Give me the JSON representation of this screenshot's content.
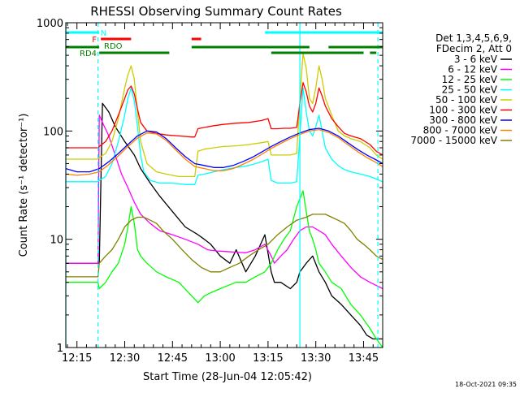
{
  "chart_data": {
    "type": "line",
    "title": "RHESSI Observing Summary Count Rates",
    "xlabel": "Start Time (28-Jun-04 12:05:42)",
    "ylabel": "Count Rate (s⁻¹ detector⁻¹)",
    "y_scale": "log",
    "ylim": [
      1,
      1000
    ],
    "xlim": [
      6.5,
      106
    ],
    "x_unit": "minutes after 12:05:42",
    "y_ticks": [
      {
        "value": 1,
        "label": "1"
      },
      {
        "value": 10,
        "label": "10"
      },
      {
        "value": 100,
        "label": "100"
      },
      {
        "value": 1000,
        "label": "1000"
      }
    ],
    "x_ticks": [
      {
        "value": 10,
        "label": "12:15"
      },
      {
        "value": 25,
        "label": "12:30"
      },
      {
        "value": 40,
        "label": "12:45"
      },
      {
        "value": 55,
        "label": "13:00"
      },
      {
        "value": 70,
        "label": "13:15"
      },
      {
        "value": 85,
        "label": "13:30"
      },
      {
        "value": 100,
        "label": "13:45"
      }
    ],
    "legend": {
      "placement": "right",
      "header": [
        "Det 1,3,4,5,6,9,",
        "FDecim 2, Att 0"
      ]
    },
    "series": [
      {
        "name": "3 - 6 keV",
        "color": "#000000",
        "x": [
          6.5,
          16.6,
          17,
          18,
          20,
          22,
          25,
          28,
          30,
          33,
          36,
          40,
          44,
          48,
          50,
          52,
          55,
          58,
          60,
          63,
          66,
          69,
          71,
          72,
          74,
          77,
          79,
          80,
          82,
          84,
          86,
          88,
          90,
          93,
          96,
          99,
          101,
          103,
          106
        ],
        "y": [
          6,
          6,
          6,
          180,
          150,
          110,
          80,
          60,
          45,
          33,
          25,
          18,
          13,
          11,
          10,
          9,
          7,
          6,
          8,
          5,
          7,
          11,
          5,
          4,
          4,
          3.5,
          4,
          5,
          6,
          7,
          5,
          4,
          3,
          2.5,
          2,
          1.6,
          1.3,
          1.2,
          1.2
        ]
      },
      {
        "name": "6 - 12 keV",
        "color": "#ff00ff",
        "x": [
          6.5,
          15,
          16.6,
          17,
          18,
          20,
          22,
          24,
          26,
          28,
          30,
          33,
          36,
          40,
          44,
          48,
          51,
          54,
          57,
          60,
          63,
          66,
          69,
          71,
          72,
          74,
          76,
          78,
          80,
          82,
          84,
          86,
          88,
          90,
          93,
          96,
          99,
          102,
          106
        ],
        "y": [
          6,
          6,
          6,
          140,
          120,
          90,
          60,
          40,
          30,
          22,
          17,
          14,
          12,
          11,
          10,
          9,
          8,
          7.8,
          7.7,
          7.6,
          7.5,
          8,
          9,
          7,
          6,
          7,
          8,
          10,
          12,
          13,
          13,
          12,
          11,
          9,
          7,
          5.5,
          4.5,
          4,
          3.5
        ]
      },
      {
        "name": "12 - 25 keV",
        "color": "#00ff00",
        "x": [
          6.5,
          16.6,
          17,
          19,
          21,
          23,
          25,
          26,
          27,
          28,
          29,
          30,
          32,
          35,
          38,
          42,
          46,
          48,
          50,
          52,
          55,
          58,
          60,
          63,
          66,
          69,
          71,
          73,
          75,
          77,
          79,
          81,
          82,
          83,
          84,
          85,
          86,
          88,
          90,
          93,
          96,
          99,
          102,
          104,
          106
        ],
        "y": [
          4,
          4,
          3.5,
          4,
          5,
          6,
          9,
          13,
          20,
          14,
          8,
          7,
          6,
          5,
          4.5,
          4,
          3,
          2.6,
          3,
          3.2,
          3.5,
          3.8,
          4,
          4,
          4.5,
          5,
          6,
          8,
          10,
          12,
          20,
          28,
          18,
          12,
          10,
          8,
          6,
          5,
          4,
          3.5,
          2.5,
          2,
          1.5,
          1.2,
          1
        ]
      },
      {
        "name": "25 - 50 keV",
        "color": "#00ffff",
        "x": [
          6.5,
          16.6,
          17,
          19,
          21,
          23,
          25,
          26,
          27,
          28,
          29,
          30,
          31,
          33,
          36,
          40,
          44,
          47,
          48,
          50,
          53,
          56,
          60,
          64,
          68,
          70,
          71,
          73,
          75,
          77,
          79,
          80,
          81,
          82,
          83,
          84,
          85,
          86,
          87,
          88,
          90,
          92,
          94,
          96,
          99,
          102,
          104,
          106
        ],
        "y": [
          34,
          34,
          35,
          38,
          50,
          80,
          140,
          200,
          250,
          190,
          110,
          60,
          42,
          35,
          33,
          33,
          32,
          32,
          39,
          40,
          42,
          44,
          46,
          48,
          52,
          55,
          35,
          33,
          33,
          33,
          34,
          90,
          250,
          150,
          100,
          90,
          110,
          140,
          100,
          70,
          55,
          48,
          44,
          42,
          40,
          38,
          36,
          34
        ]
      },
      {
        "name": "50 - 100 keV",
        "color": "#cccc00",
        "x": [
          6.5,
          16.6,
          17,
          19,
          21,
          23,
          25,
          26,
          27,
          28,
          29,
          30,
          32,
          35,
          38,
          42,
          46,
          47,
          48,
          50,
          53,
          56,
          60,
          64,
          68,
          70,
          71,
          73,
          75,
          77,
          79,
          80,
          81,
          82,
          83,
          84,
          85,
          86,
          87,
          88,
          90,
          92,
          94,
          96,
          99,
          102,
          104,
          106
        ],
        "y": [
          55,
          55,
          57,
          62,
          80,
          130,
          250,
          330,
          400,
          300,
          150,
          80,
          50,
          42,
          40,
          38,
          38,
          38,
          65,
          68,
          70,
          72,
          73,
          75,
          78,
          80,
          60,
          60,
          60,
          60,
          62,
          200,
          520,
          380,
          200,
          180,
          250,
          400,
          300,
          200,
          140,
          100,
          90,
          85,
          80,
          70,
          60,
          55
        ]
      },
      {
        "name": "100 - 300 keV",
        "color": "#ff0000",
        "x": [
          6.5,
          16.6,
          17,
          19,
          21,
          23,
          25,
          26,
          27,
          28,
          29,
          30,
          32,
          35,
          38,
          42,
          46,
          47,
          48,
          50,
          53,
          56,
          60,
          64,
          68,
          70,
          71,
          73,
          75,
          77,
          79,
          80,
          81,
          82,
          83,
          84,
          85,
          86,
          87,
          88,
          90,
          92,
          94,
          96,
          99,
          102,
          104,
          106
        ],
        "y": [
          70,
          70,
          72,
          80,
          100,
          140,
          200,
          240,
          260,
          220,
          160,
          120,
          100,
          95,
          92,
          90,
          88,
          88,
          105,
          108,
          112,
          115,
          118,
          120,
          125,
          130,
          105,
          105,
          106,
          106,
          108,
          180,
          280,
          230,
          170,
          150,
          180,
          250,
          210,
          170,
          130,
          110,
          95,
          90,
          85,
          75,
          65,
          60
        ]
      },
      {
        "name": "300 - 800 keV",
        "color": "#0000ff",
        "x": [
          6.5,
          10,
          14,
          17,
          20,
          23,
          26,
          29,
          32,
          35,
          38,
          41,
          44,
          47,
          50,
          53,
          56,
          59,
          62,
          65,
          68,
          71,
          74,
          77,
          80,
          83,
          86,
          89,
          92,
          95,
          98,
          101,
          104,
          106
        ],
        "y": [
          45,
          42,
          42,
          45,
          52,
          62,
          75,
          90,
          100,
          98,
          85,
          70,
          58,
          50,
          48,
          46,
          46,
          48,
          52,
          57,
          64,
          72,
          80,
          88,
          96,
          103,
          106,
          100,
          90,
          78,
          68,
          60,
          54,
          50
        ]
      },
      {
        "name": "800 - 7000 keV",
        "color": "#ff8000",
        "x": [
          6.5,
          10,
          14,
          17,
          20,
          23,
          26,
          29,
          32,
          35,
          38,
          41,
          44,
          47,
          50,
          53,
          56,
          59,
          62,
          65,
          68,
          71,
          74,
          77,
          80,
          83,
          86,
          89,
          92,
          95,
          98,
          101,
          104,
          106
        ],
        "y": [
          40,
          39,
          40,
          42,
          49,
          59,
          72,
          86,
          96,
          94,
          82,
          67,
          55,
          47,
          45,
          43,
          43,
          45,
          49,
          54,
          61,
          69,
          77,
          85,
          93,
          100,
          103,
          97,
          87,
          75,
          65,
          57,
          51,
          47
        ]
      },
      {
        "name": "7000 - 15000 keV",
        "color": "#808000",
        "x": [
          6.5,
          10,
          14,
          16.6,
          17,
          19,
          21,
          23,
          25,
          27,
          29,
          31,
          33,
          35,
          37,
          40,
          43,
          46,
          49,
          52,
          55,
          58,
          61,
          64,
          67,
          70,
          73,
          76,
          79,
          82,
          84,
          86,
          88,
          90,
          92,
          94,
          96,
          98,
          100,
          102,
          104,
          106
        ],
        "y": [
          4.5,
          4.5,
          4.5,
          4.5,
          6,
          7,
          8,
          10,
          13,
          15,
          16,
          16,
          15,
          14,
          12,
          10,
          8,
          6.5,
          5.5,
          5,
          5,
          5.5,
          6,
          7,
          8,
          9,
          11,
          13,
          15,
          16,
          17,
          17,
          17,
          16,
          15,
          14,
          12,
          10,
          9,
          8,
          7,
          6.5
        ]
      }
    ],
    "annotations": {
      "state_bars": [
        {
          "label": "N",
          "color": "#00ffff",
          "row": 1,
          "segments": [
            [
              6.5,
              17
            ],
            [
              69,
              106
            ]
          ]
        },
        {
          "label": "F",
          "color": "#ff0000",
          "row": 2,
          "segments": [
            [
              17.5,
              27
            ],
            [
              46,
              49
            ]
          ]
        },
        {
          "label": "RDO",
          "color": "#008000",
          "row": 3,
          "segments": [
            [
              6.5,
              17
            ],
            [
              46,
              83
            ],
            [
              89,
              106
            ]
          ]
        },
        {
          "label": "RD4",
          "color": "#008000",
          "row": 4,
          "segments": [
            [
              17,
              39
            ],
            [
              71,
              100
            ],
            [
              102,
              104
            ]
          ]
        }
      ],
      "vlines": [
        {
          "x": 6.5,
          "color": "#00ffff",
          "style": "solid"
        },
        {
          "x": 16.6,
          "color": "#00ffff",
          "style": "dashed"
        },
        {
          "x": 80,
          "color": "#00ffff",
          "style": "solid"
        },
        {
          "x": 104.5,
          "color": "#00ffff",
          "style": "dashed"
        }
      ]
    },
    "footer_date": "18-Oct-2021 09:35"
  }
}
